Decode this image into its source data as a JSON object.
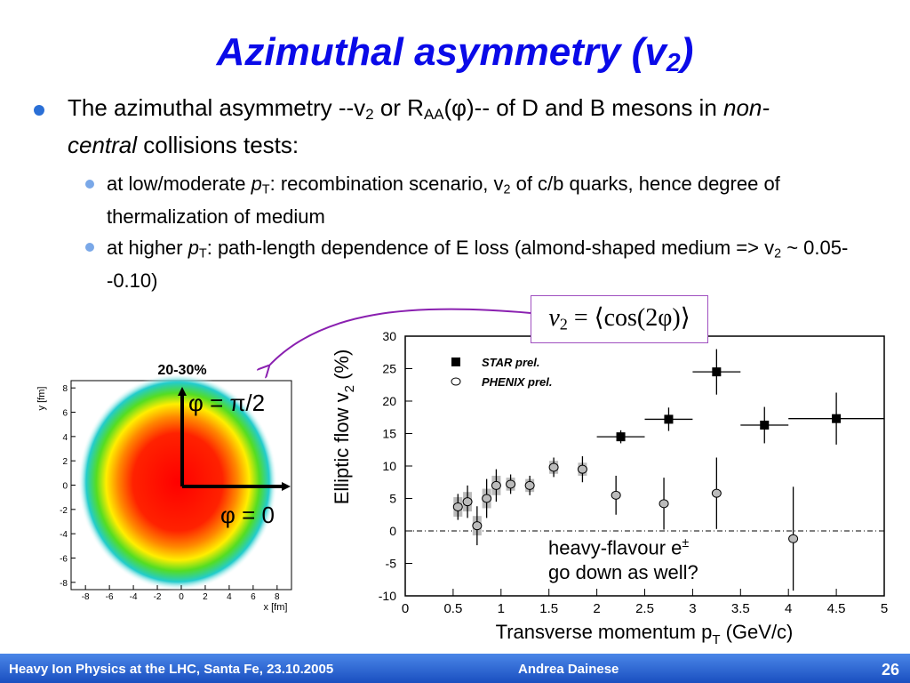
{
  "title": {
    "parts": [
      "Azimuthal asymmetry (v",
      "2",
      ")"
    ]
  },
  "bullets": [
    {
      "parts": [
        "The azimuthal asymmetry --v",
        "2",
        " or R",
        "AA",
        "(φ)-- of D and B mesons in ",
        "non-central",
        " collisions tests:"
      ],
      "sub_bullets": [
        {
          "parts": [
            "at low/moderate ",
            "p",
            "T",
            ": recombination scenario, v",
            "2",
            " of c/b quarks, hence degree of thermalization of medium"
          ]
        },
        {
          "parts": [
            "at higher ",
            "p",
            "T",
            ": path-length dependence of E loss (almond-shaped medium => v",
            "2",
            " ~ 0.05--0.10)"
          ]
        }
      ]
    }
  ],
  "formula": {
    "parts": [
      "v",
      "2",
      " = ⟨cos(2φ)⟩"
    ]
  },
  "annotation": {
    "parts": [
      "heavy-flavour e",
      "±",
      "go down as well?"
    ]
  },
  "chart_data": [
    {
      "type": "scatter",
      "x_label": {
        "parts": [
          "Transverse momentum p",
          "T",
          " (GeV/c)"
        ]
      },
      "y_label": {
        "parts": [
          "Elliptic flow v",
          "2",
          " (%)"
        ]
      },
      "xlim": [
        0,
        5
      ],
      "ylim": [
        -10,
        30
      ],
      "xticks": [
        0,
        0.5,
        1,
        1.5,
        2,
        2.5,
        3,
        3.5,
        4,
        4.5,
        5
      ],
      "yticks": [
        -10,
        -5,
        0,
        5,
        10,
        15,
        20,
        25,
        30
      ],
      "reference_line": 0,
      "series": [
        {
          "name": "STAR prel.",
          "color": "#000000",
          "marker": "square",
          "x": [
            2.25,
            2.75,
            3.25,
            3.75,
            4.5
          ],
          "values": [
            14.5,
            17.2,
            24.5,
            16.3,
            17.3
          ],
          "x_errors": [
            0.25,
            0.25,
            0.25,
            0.25,
            0.5
          ],
          "y_errors": [
            1.0,
            1.8,
            3.5,
            2.8,
            4.0
          ]
        },
        {
          "name": "PHENIX prel.",
          "color": "#bbbbbb",
          "marker": "circle",
          "x": [
            0.55,
            0.65,
            0.75,
            0.85,
            0.95,
            1.1,
            1.3,
            1.55,
            1.85,
            2.2,
            2.7,
            3.25,
            4.05
          ],
          "values": [
            3.7,
            4.5,
            0.8,
            5.0,
            7.0,
            7.2,
            7.0,
            9.8,
            9.5,
            5.5,
            4.2,
            5.8,
            -1.2
          ],
          "y_errors": [
            2.0,
            2.5,
            3.0,
            3.0,
            2.5,
            1.5,
            1.5,
            1.5,
            2.0,
            3.0,
            4.0,
            5.5,
            8.0
          ],
          "syst_errors": [
            1.5,
            1.5,
            1.5,
            1.5,
            1.5,
            1.0,
            1.0,
            1.0,
            1.0,
            null,
            null,
            null,
            null
          ]
        }
      ]
    },
    {
      "type": "density",
      "title": "20-30%",
      "x_label": "x [fm]",
      "y_label": "y [fm]",
      "xlim": [
        -9.2,
        9.2
      ],
      "ylim": [
        -8.6,
        8.6
      ],
      "xticks": [
        -8,
        -6,
        -4,
        -2,
        0,
        2,
        4,
        6,
        8
      ],
      "yticks": [
        -8,
        -6,
        -4,
        -2,
        0,
        2,
        4,
        6,
        8
      ],
      "annotations": [
        "φ = π/2",
        "φ = 0"
      ]
    }
  ],
  "footer": {
    "left": "Heavy Ion Physics at the LHC, Santa Fe, 23.10.2005",
    "center": "Andrea Dainese",
    "page": "26"
  }
}
